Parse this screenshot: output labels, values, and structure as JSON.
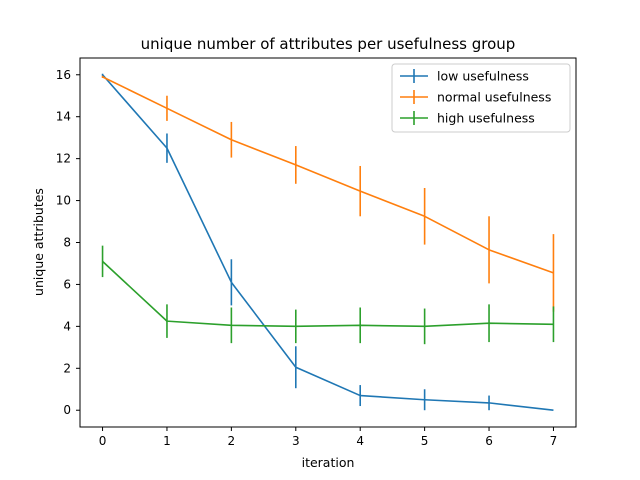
{
  "chart_data": {
    "type": "line",
    "title": "unique number of attributes per usefulness group",
    "xlabel": "iteration",
    "ylabel": "unique attributes",
    "x": [
      0,
      1,
      2,
      3,
      4,
      5,
      6,
      7
    ],
    "xlim": [
      -0.35,
      7.35
    ],
    "ylim": [
      -0.8,
      16.8
    ],
    "xticks": [
      0,
      1,
      2,
      3,
      4,
      5,
      6,
      7
    ],
    "yticks": [
      0,
      2,
      4,
      6,
      8,
      10,
      12,
      14,
      16
    ],
    "grid": false,
    "legend_position": "top-right",
    "series": [
      {
        "name": "low usefulness",
        "color": "#1f77b4",
        "values": [
          16.0,
          12.5,
          6.1,
          2.05,
          0.7,
          0.5,
          0.35,
          0.0
        ],
        "errors": [
          0.05,
          0.7,
          1.1,
          1.0,
          0.5,
          0.5,
          0.35,
          0.0
        ]
      },
      {
        "name": "normal usefulness",
        "color": "#ff7f0e",
        "values": [
          15.9,
          14.4,
          12.9,
          11.7,
          10.45,
          9.25,
          7.65,
          6.55
        ],
        "errors": [
          0.05,
          0.6,
          0.85,
          0.9,
          1.2,
          1.35,
          1.6,
          1.85
        ]
      },
      {
        "name": "high usefulness",
        "color": "#2ca02c",
        "values": [
          7.1,
          4.25,
          4.05,
          4.0,
          4.05,
          4.0,
          4.15,
          4.1
        ],
        "errors": [
          0.75,
          0.8,
          0.85,
          0.8,
          0.85,
          0.85,
          0.9,
          0.85
        ]
      }
    ]
  }
}
